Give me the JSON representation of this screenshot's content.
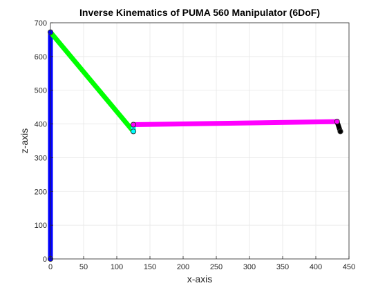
{
  "chart_data": {
    "type": "line",
    "title": "Inverse Kinematics of PUMA 560 Manipulator (6DoF)",
    "xlabel": "x-axis",
    "ylabel": "z-axis",
    "xlim": [
      0,
      450
    ],
    "ylim": [
      0,
      700
    ],
    "xticks": [
      0,
      50,
      100,
      150,
      200,
      250,
      300,
      350,
      400,
      450
    ],
    "yticks": [
      0,
      100,
      200,
      300,
      400,
      500,
      600,
      700
    ],
    "grid": true,
    "series": [
      {
        "color": "#0000ff",
        "points": [
          [
            0,
            0
          ],
          [
            0,
            672
          ]
        ]
      },
      {
        "color": "#00ff00",
        "points": [
          [
            0,
            672
          ],
          [
            125,
            378
          ]
        ]
      },
      {
        "color": "#00ffff",
        "points": [
          [
            125,
            378
          ],
          [
            125,
            398
          ]
        ]
      },
      {
        "color": "#ff00ff",
        "points": [
          [
            125,
            398
          ],
          [
            432,
            407
          ]
        ]
      },
      {
        "color": "#000000",
        "points": [
          [
            432,
            407
          ],
          [
            437,
            378
          ]
        ]
      }
    ],
    "joints": [
      {
        "x": 0,
        "y": 0,
        "color": "#0000ff"
      },
      {
        "x": 0,
        "y": 672,
        "color": "#0000ff"
      },
      {
        "x": 125,
        "y": 378,
        "color": "#00ffff"
      },
      {
        "x": 125,
        "y": 398,
        "color": "#ff00ff"
      },
      {
        "x": 432,
        "y": 407,
        "color": "#ff00ff"
      },
      {
        "x": 437,
        "y": 378,
        "color": "#000000"
      }
    ]
  }
}
